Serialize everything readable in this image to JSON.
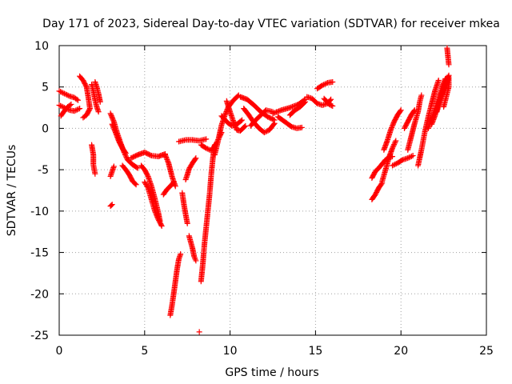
{
  "chart_data": {
    "type": "scatter",
    "title": "Day 171 of 2023, Sidereal Day-to-day VTEC variation (SDTVAR) for receiver mkea",
    "xlabel": "GPS time / hours",
    "ylabel": "SDTVAR / TECUs",
    "xlim": [
      0,
      25
    ],
    "ylim": [
      -25,
      10
    ],
    "xticks": [
      0,
      5,
      10,
      15,
      20,
      25
    ],
    "yticks": [
      -25,
      -20,
      -15,
      -10,
      -5,
      0,
      5,
      10
    ],
    "grid": true,
    "marker": "+",
    "color": "#ff0000",
    "segments": [
      [
        [
          0.0,
          4.5
        ],
        [
          0.3,
          4.2
        ],
        [
          0.6,
          3.9
        ],
        [
          0.9,
          3.7
        ],
        [
          1.1,
          3.4
        ]
      ],
      [
        [
          0.0,
          2.8
        ],
        [
          0.3,
          2.5
        ],
        [
          0.6,
          2.2
        ],
        [
          0.9,
          2.1
        ],
        [
          1.2,
          2.4
        ]
      ],
      [
        [
          0.1,
          1.5
        ],
        [
          0.3,
          2.1
        ],
        [
          0.5,
          2.6
        ],
        [
          0.7,
          2.9
        ]
      ],
      [
        [
          1.2,
          6.3
        ],
        [
          1.4,
          5.8
        ],
        [
          1.6,
          5.0
        ],
        [
          1.7,
          3.8
        ],
        [
          1.8,
          2.4
        ],
        [
          1.6,
          1.6
        ],
        [
          1.4,
          1.3
        ]
      ],
      [
        [
          1.9,
          5.3
        ],
        [
          2.0,
          4.5
        ],
        [
          2.1,
          3.4
        ],
        [
          2.2,
          2.6
        ],
        [
          2.3,
          2.0
        ]
      ],
      [
        [
          2.1,
          5.6
        ],
        [
          2.2,
          5.0
        ],
        [
          2.3,
          4.2
        ],
        [
          2.4,
          3.2
        ]
      ],
      [
        [
          1.9,
          -2.0
        ],
        [
          2.0,
          -3.2
        ],
        [
          2.0,
          -4.4
        ],
        [
          2.1,
          -5.5
        ]
      ],
      [
        [
          3.0,
          1.8
        ],
        [
          3.2,
          0.8
        ],
        [
          3.4,
          -0.6
        ],
        [
          3.6,
          -1.8
        ],
        [
          3.8,
          -2.9
        ],
        [
          4.0,
          -3.8
        ],
        [
          4.3,
          -4.4
        ],
        [
          4.6,
          -4.8
        ]
      ],
      [
        [
          3.1,
          0.5
        ],
        [
          3.3,
          -0.5
        ],
        [
          3.5,
          -1.6
        ],
        [
          3.7,
          -2.4
        ],
        [
          3.9,
          -3.0
        ]
      ],
      [
        [
          3.0,
          -5.8
        ],
        [
          3.1,
          -5.2
        ],
        [
          3.2,
          -4.6
        ]
      ],
      [
        [
          3.0,
          -9.4
        ],
        [
          3.1,
          -9.2
        ]
      ],
      [
        [
          3.7,
          -4.5
        ],
        [
          3.9,
          -5.0
        ],
        [
          4.1,
          -5.6
        ],
        [
          4.3,
          -6.4
        ],
        [
          4.5,
          -6.8
        ]
      ],
      [
        [
          4.2,
          -3.6
        ],
        [
          4.6,
          -3.2
        ],
        [
          5.0,
          -2.9
        ],
        [
          5.4,
          -3.3
        ],
        [
          5.8,
          -3.4
        ],
        [
          6.2,
          -3.1
        ]
      ],
      [
        [
          4.8,
          -4.5
        ],
        [
          5.0,
          -5.0
        ],
        [
          5.2,
          -5.8
        ],
        [
          5.4,
          -7.0
        ],
        [
          5.6,
          -8.5
        ],
        [
          5.8,
          -10.2
        ],
        [
          5.9,
          -11.2
        ]
      ],
      [
        [
          5.0,
          -6.5
        ],
        [
          5.2,
          -7.2
        ],
        [
          5.4,
          -8.6
        ],
        [
          5.6,
          -10.0
        ],
        [
          5.8,
          -11.0
        ],
        [
          6.0,
          -11.8
        ]
      ],
      [
        [
          6.1,
          -8.0
        ],
        [
          6.3,
          -7.4
        ],
        [
          6.5,
          -7.0
        ],
        [
          6.7,
          -6.5
        ]
      ],
      [
        [
          6.2,
          -3.2
        ],
        [
          6.4,
          -4.2
        ],
        [
          6.6,
          -5.8
        ],
        [
          6.8,
          -7.0
        ]
      ],
      [
        [
          6.5,
          -22.6
        ],
        [
          6.6,
          -21.4
        ],
        [
          6.7,
          -20.0
        ],
        [
          6.8,
          -18.5
        ],
        [
          6.9,
          -17.0
        ],
        [
          7.0,
          -15.8
        ],
        [
          7.1,
          -15.2
        ]
      ],
      [
        [
          7.0,
          -1.6
        ],
        [
          7.4,
          -1.4
        ],
        [
          7.8,
          -1.4
        ],
        [
          8.2,
          -1.5
        ],
        [
          8.6,
          -1.3
        ]
      ],
      [
        [
          7.2,
          -7.8
        ],
        [
          7.3,
          -9.2
        ],
        [
          7.4,
          -10.4
        ],
        [
          7.5,
          -11.5
        ]
      ],
      [
        [
          7.4,
          -6.2
        ],
        [
          7.5,
          -5.6
        ],
        [
          7.6,
          -4.9
        ],
        [
          7.8,
          -4.2
        ],
        [
          8.0,
          -3.6
        ]
      ],
      [
        [
          7.6,
          -13.0
        ],
        [
          7.8,
          -14.5
        ],
        [
          7.9,
          -15.5
        ],
        [
          8.0,
          -16.0
        ]
      ],
      [
        [
          8.2,
          -24.6
        ]
      ],
      [
        [
          8.3,
          -18.5
        ],
        [
          8.4,
          -16.5
        ],
        [
          8.5,
          -14.0
        ],
        [
          8.6,
          -12.0
        ],
        [
          8.7,
          -10.0
        ],
        [
          8.8,
          -8.0
        ],
        [
          8.9,
          -5.5
        ],
        [
          9.0,
          -3.5
        ],
        [
          9.1,
          -2.0
        ]
      ],
      [
        [
          8.3,
          -2.0
        ],
        [
          8.6,
          -2.4
        ],
        [
          8.9,
          -2.7
        ],
        [
          9.2,
          -1.8
        ],
        [
          9.5,
          -0.5
        ]
      ],
      [
        [
          9.1,
          -3.2
        ],
        [
          9.3,
          -1.5
        ],
        [
          9.5,
          0.4
        ],
        [
          9.7,
          1.6
        ],
        [
          9.9,
          2.6
        ],
        [
          10.2,
          3.4
        ],
        [
          10.5,
          4.0
        ]
      ],
      [
        [
          9.5,
          1.5
        ],
        [
          9.8,
          0.8
        ],
        [
          10.1,
          0.3
        ],
        [
          10.4,
          0.5
        ],
        [
          10.7,
          1.0
        ]
      ],
      [
        [
          9.8,
          3.3
        ],
        [
          10.0,
          2.0
        ],
        [
          10.2,
          0.8
        ],
        [
          10.4,
          -0.2
        ],
        [
          10.6,
          -0.3
        ],
        [
          10.9,
          0.3
        ]
      ],
      [
        [
          10.6,
          3.8
        ],
        [
          11.0,
          3.5
        ],
        [
          11.4,
          2.8
        ],
        [
          11.8,
          2.0
        ],
        [
          12.2,
          1.4
        ],
        [
          12.6,
          1.0
        ]
      ],
      [
        [
          10.8,
          2.4
        ],
        [
          11.1,
          1.6
        ],
        [
          11.4,
          0.7
        ],
        [
          11.7,
          0.0
        ],
        [
          12.0,
          -0.5
        ],
        [
          12.3,
          -0.2
        ],
        [
          12.6,
          0.6
        ]
      ],
      [
        [
          11.2,
          0.3
        ],
        [
          11.5,
          1.0
        ],
        [
          11.8,
          1.6
        ],
        [
          12.1,
          2.2
        ],
        [
          12.5,
          2.0
        ]
      ],
      [
        [
          12.5,
          1.8
        ],
        [
          13.0,
          2.2
        ],
        [
          13.5,
          2.5
        ],
        [
          14.0,
          2.9
        ],
        [
          14.4,
          3.5
        ]
      ],
      [
        [
          12.8,
          1.4
        ],
        [
          13.2,
          0.8
        ],
        [
          13.6,
          0.2
        ],
        [
          13.9,
          0.0
        ],
        [
          14.2,
          0.1
        ]
      ],
      [
        [
          13.5,
          1.6
        ],
        [
          13.8,
          2.2
        ],
        [
          14.1,
          2.6
        ],
        [
          14.4,
          3.2
        ]
      ],
      [
        [
          14.5,
          3.8
        ],
        [
          14.8,
          3.6
        ],
        [
          15.1,
          3.0
        ],
        [
          15.4,
          2.8
        ],
        [
          15.7,
          3.0
        ],
        [
          15.9,
          3.5
        ]
      ],
      [
        [
          15.1,
          4.8
        ],
        [
          15.4,
          5.2
        ],
        [
          15.7,
          5.5
        ],
        [
          16.0,
          5.6
        ]
      ],
      [
        [
          15.5,
          3.6
        ],
        [
          15.8,
          2.9
        ],
        [
          16.0,
          2.7
        ]
      ],
      [
        [
          18.3,
          -8.6
        ],
        [
          18.5,
          -8.0
        ],
        [
          18.7,
          -7.2
        ],
        [
          18.9,
          -6.6
        ]
      ],
      [
        [
          18.3,
          -6.0
        ],
        [
          18.5,
          -5.2
        ],
        [
          18.7,
          -4.8
        ],
        [
          18.9,
          -4.3
        ],
        [
          19.1,
          -3.8
        ],
        [
          19.3,
          -3.5
        ],
        [
          19.5,
          -3.4
        ]
      ],
      [
        [
          18.9,
          -6.4
        ],
        [
          19.1,
          -5.0
        ],
        [
          19.3,
          -3.5
        ],
        [
          19.5,
          -2.4
        ],
        [
          19.7,
          -1.5
        ]
      ],
      [
        [
          19.0,
          -2.6
        ],
        [
          19.2,
          -1.5
        ],
        [
          19.4,
          -0.2
        ],
        [
          19.6,
          0.8
        ],
        [
          19.8,
          1.6
        ],
        [
          20.0,
          2.2
        ]
      ],
      [
        [
          19.5,
          -4.5
        ],
        [
          19.8,
          -4.2
        ],
        [
          20.1,
          -3.8
        ],
        [
          20.4,
          -3.6
        ],
        [
          20.7,
          -3.3
        ]
      ],
      [
        [
          20.2,
          0.0
        ],
        [
          20.4,
          0.8
        ],
        [
          20.6,
          1.6
        ],
        [
          20.8,
          2.2
        ]
      ],
      [
        [
          20.4,
          -2.6
        ],
        [
          20.6,
          -1.0
        ],
        [
          20.8,
          0.6
        ],
        [
          21.0,
          2.0
        ],
        [
          21.1,
          3.2
        ],
        [
          21.2,
          4.0
        ]
      ],
      [
        [
          21.0,
          -4.5
        ],
        [
          21.2,
          -2.6
        ],
        [
          21.4,
          -0.4
        ],
        [
          21.6,
          1.4
        ],
        [
          21.8,
          3.0
        ],
        [
          22.0,
          4.6
        ],
        [
          22.2,
          5.8
        ]
      ],
      [
        [
          21.6,
          0.0
        ],
        [
          21.8,
          1.2
        ],
        [
          22.0,
          2.4
        ],
        [
          22.2,
          3.6
        ],
        [
          22.4,
          5.0
        ],
        [
          22.6,
          6.0
        ]
      ],
      [
        [
          21.8,
          0.5
        ],
        [
          22.0,
          1.6
        ],
        [
          22.2,
          3.0
        ],
        [
          22.4,
          4.4
        ],
        [
          22.6,
          5.6
        ],
        [
          22.8,
          6.4
        ]
      ],
      [
        [
          22.1,
          2.0
        ],
        [
          22.3,
          3.4
        ],
        [
          22.5,
          4.6
        ],
        [
          22.7,
          5.4
        ],
        [
          22.8,
          6.2
        ]
      ],
      [
        [
          22.5,
          2.6
        ],
        [
          22.6,
          3.4
        ],
        [
          22.7,
          4.2
        ],
        [
          22.8,
          5.0
        ],
        [
          22.8,
          6.0
        ]
      ],
      [
        [
          22.7,
          9.7
        ],
        [
          22.8,
          7.7
        ]
      ]
    ]
  }
}
